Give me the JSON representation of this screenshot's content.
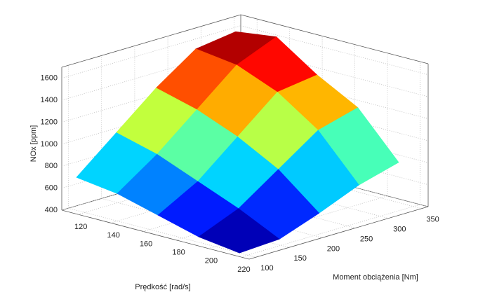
{
  "chart_data": {
    "type": "surface",
    "x_label": "Prędkość [rad/s]",
    "y_label": "Moment obciążenia [Nm]",
    "z_label": "NOx [ppm]",
    "x": [
      115,
      140,
      165,
      190,
      215
    ],
    "y": [
      100,
      160,
      220,
      280,
      340
    ],
    "z": [
      [
        700,
        1000,
        1300,
        1550,
        1600
      ],
      [
        650,
        900,
        1200,
        1500,
        1650
      ],
      [
        550,
        750,
        1050,
        1350,
        1400
      ],
      [
        450,
        600,
        850,
        1100,
        1200
      ],
      [
        400,
        420,
        550,
        700,
        800
      ]
    ],
    "colormap": "jet",
    "xlim": [
      110,
      225
    ],
    "xticks": [
      120,
      140,
      160,
      180,
      200,
      220
    ],
    "ylim": [
      90,
      360
    ],
    "yticks": [
      100,
      150,
      200,
      250,
      300,
      350
    ],
    "zlim": [
      400,
      1700
    ],
    "zticks": [
      400,
      600,
      800,
      1000,
      1200,
      1400,
      1600
    ],
    "grid": true
  }
}
